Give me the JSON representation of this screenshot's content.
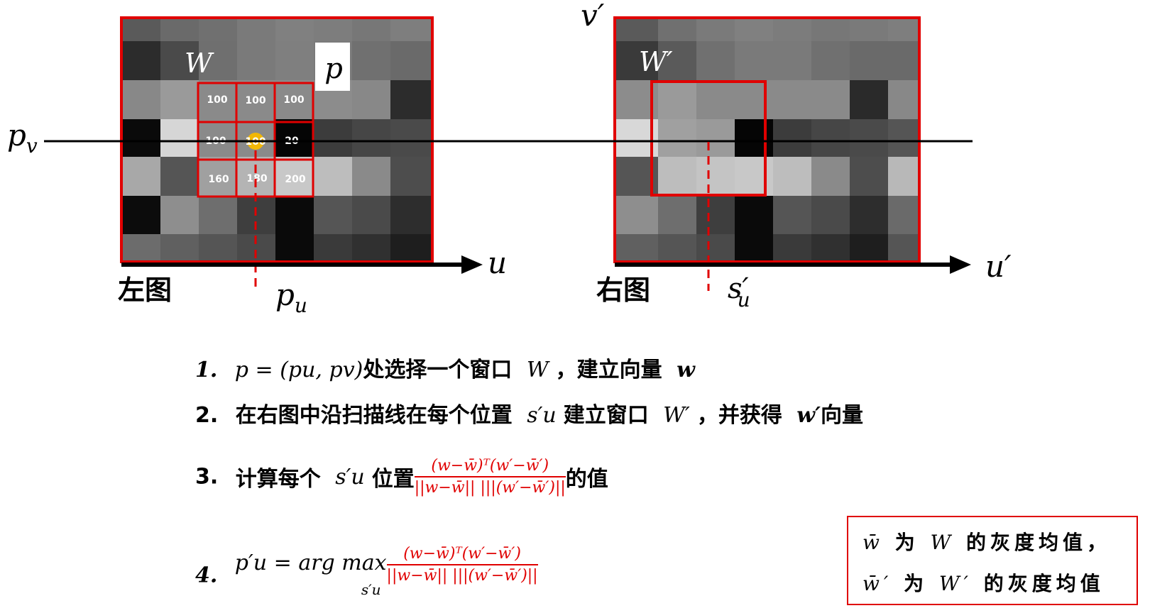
{
  "left_image": {
    "caption": "左图",
    "window_label": "W",
    "point_label": "p",
    "axis_u": "u",
    "row_label": "p",
    "row_label_sub": "v",
    "col_label": "p",
    "col_label_sub": "u",
    "cells": [
      "100",
      "100",
      "100",
      "100",
      "100",
      "20",
      "160",
      "180",
      "200"
    ]
  },
  "right_image": {
    "caption": "右图",
    "window_label": "W′",
    "axis_u": "u′",
    "axis_v": "v′",
    "scan_label": "s′",
    "scan_label_sub": "u"
  },
  "steps": [
    {
      "num": "1.",
      "math": "p = (pu, pv)",
      "text": "处选择一个窗口",
      "var": "W",
      "text2": "，建立向量",
      "var2": "w"
    },
    {
      "num": "2.",
      "text": "在右图中沿扫描线在每个位置",
      "var": "s′u",
      "text2": "建立窗口",
      "var2": "W′",
      "text3": "，并获得",
      "var3": "w′",
      "text4": "向量"
    },
    {
      "num": "3.",
      "text": "计算每个",
      "var": "s′u",
      "text2": "位置",
      "frac_num": "(w−w̄)ᵀ(w′−w̄′)",
      "frac_den": "||w−w̄|| |||(w′−w̄′)||",
      "text3": "的值"
    },
    {
      "num": "4.",
      "math": "p′u = arg max",
      "sub": "s′u",
      "frac_num": "(w−w̄)ᵀ(w′−w̄′)",
      "frac_den": "||w−w̄|| |||(w′−w̄′)||"
    }
  ],
  "note": {
    "line1_var": "w̄",
    "line1_text": "为",
    "line1_var2": "W",
    "line1_text2": "的灰度均值，",
    "line2_var": "w̄′",
    "line2_text": "为",
    "line2_var2": "W′",
    "line2_text2": "的灰度均值"
  },
  "colors": {
    "accent_red": "#e00000",
    "center_dot": "#f2b705"
  }
}
